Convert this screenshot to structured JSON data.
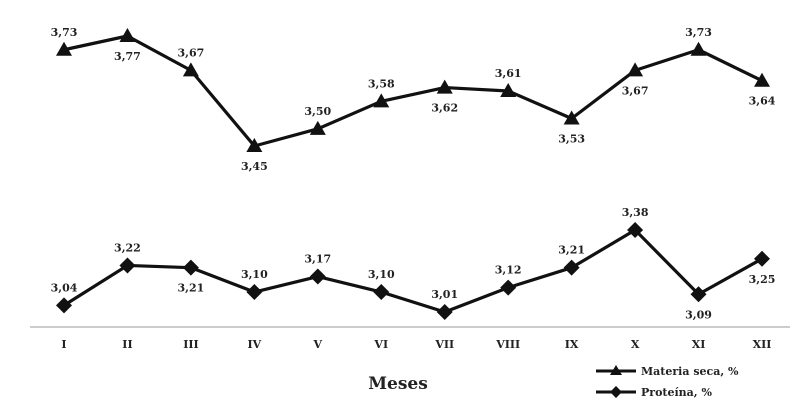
{
  "chart_data": {
    "type": "line",
    "xlabel": "Meses",
    "categories": [
      "I",
      "II",
      "III",
      "IV",
      "V",
      "VI",
      "VII",
      "VIII",
      "IX",
      "X",
      "XI",
      "XII"
    ],
    "legend_position": "bottom-right",
    "grid": false,
    "series": [
      {
        "name": "Materia seca, %",
        "marker": "triangle",
        "color": "#111111",
        "values": [
          3.73,
          3.77,
          3.67,
          3.45,
          3.5,
          3.58,
          3.62,
          3.61,
          3.53,
          3.67,
          3.73,
          3.64
        ],
        "labels": [
          "3,73",
          "3,77",
          "3,67",
          "3,45",
          "3,50",
          "3,58",
          "3,62",
          "3,61",
          "3,53",
          "3,67",
          "3,73",
          "3,64"
        ]
      },
      {
        "name": "Proteína, %",
        "marker": "diamond",
        "color": "#111111",
        "values": [
          3.04,
          3.22,
          3.21,
          3.1,
          3.17,
          3.1,
          3.01,
          3.12,
          3.21,
          3.38,
          3.09,
          3.25
        ],
        "labels": [
          "3,04",
          "3,22",
          "3,21",
          "3,10",
          "3,17",
          "3,10",
          "3,01",
          "3,12",
          "3,21",
          "3,38",
          "3,09",
          "3,25"
        ]
      }
    ]
  }
}
